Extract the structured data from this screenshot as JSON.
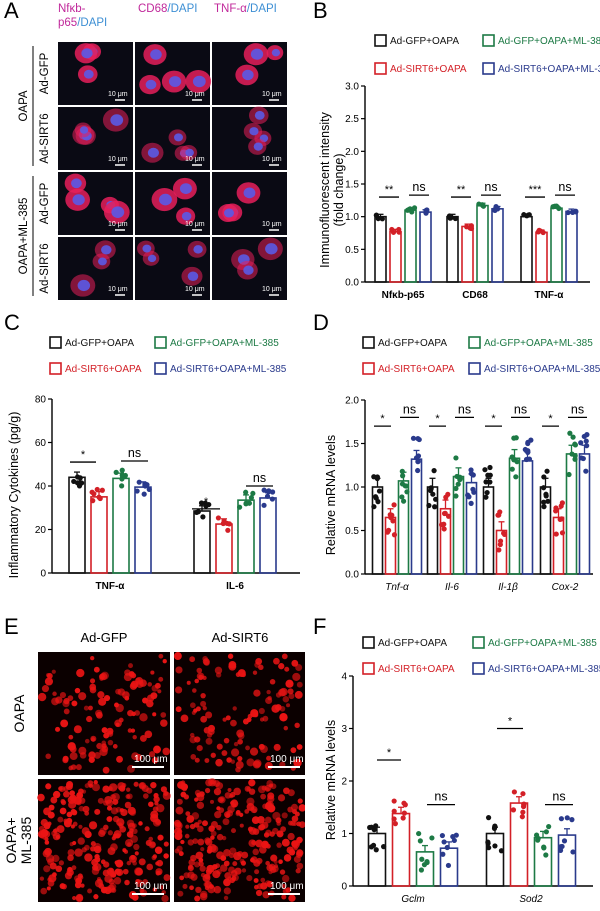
{
  "colors": {
    "black": "#111111",
    "red": "#d32027",
    "green": "#1d7a45",
    "navy": "#2a3a8c",
    "magenta": "#c0289a",
    "cyan": "#3d8fd4",
    "scalebar": "#ffffff"
  },
  "panels": {
    "a": {
      "letter": "A",
      "col_headers": [
        {
          "parts": [
            {
              "t": "Nfκb-p65",
              "c": "magenta"
            },
            {
              "t": "/DAPI",
              "c": "cyan"
            }
          ]
        },
        {
          "parts": [
            {
              "t": "CD68",
              "c": "magenta"
            },
            {
              "t": "/DAPI",
              "c": "cyan"
            }
          ]
        },
        {
          "parts": [
            {
              "t": "TNF-α",
              "c": "magenta"
            },
            {
              "t": "/DAPI",
              "c": "cyan"
            }
          ]
        }
      ],
      "group_labels": [
        "OAPA",
        "OAPA+ML-385"
      ],
      "row_labels": [
        "Ad-GFP",
        "Ad-SIRT6",
        "Ad-GFP",
        "Ad-SIRT6"
      ],
      "scale_text": "10 μm"
    },
    "b": {
      "letter": "B",
      "legend": [
        "Ad-GFP+OAPA",
        "Ad-GFP+OAPA+ML-385",
        "Ad-SIRT6+OAPA",
        "Ad-SIRT6+OAPA+ML-385"
      ],
      "ylabel_line1": "Immunofluorescent intensity",
      "ylabel_line2": "(fold change)",
      "yticks": [
        "0.0",
        "0.5",
        "1.0",
        "1.5",
        "2.0",
        "2.5",
        "3.0"
      ],
      "sig": [
        "**",
        "**",
        "***"
      ],
      "ns": [
        "ns",
        "ns",
        "ns"
      ]
    },
    "c": {
      "letter": "C",
      "legend": [
        "Ad-GFP+OAPA",
        "Ad-GFP+OAPA+ML-385",
        "Ad-SIRT6+OAPA",
        "Ad-SIRT6+OAPA+ML-385"
      ],
      "ylabel": "Inflammatory Cytokines (pg/g)",
      "yticks": [
        "0",
        "20",
        "40",
        "60",
        "80"
      ],
      "sig": [
        "*",
        "*"
      ],
      "ns": [
        "ns",
        "ns"
      ]
    },
    "d": {
      "letter": "D",
      "legend": [
        "Ad-GFP+OAPA",
        "Ad-GFP+OAPA+ML-385",
        "Ad-SIRT6+OAPA",
        "Ad-SIRT6+OAPA+ML-385"
      ],
      "ylabel": "Relative mRNA levels",
      "yticks": [
        "0.0",
        "0.5",
        "1.0",
        "1.5",
        "2.0"
      ],
      "sig": [
        "*",
        "*",
        "*",
        "*"
      ],
      "ns": [
        "ns",
        "ns",
        "ns",
        "ns"
      ]
    },
    "e": {
      "letter": "E",
      "col_headers": [
        "Ad-GFP",
        "Ad-SIRT6"
      ],
      "row_labels": [
        "OAPA",
        "OAPA+\nML-385"
      ],
      "scale_text": "100 μm"
    },
    "f": {
      "letter": "F",
      "legend": [
        "Ad-GFP+OAPA",
        "Ad-GFP+OAPA+ML-385",
        "Ad-SIRT6+OAPA",
        "Ad-SIRT6+OAPA+ML-385"
      ],
      "ylabel": "Relative mRNA levels",
      "yticks": [
        "0",
        "1",
        "2",
        "3",
        "4"
      ],
      "sig": [
        "*",
        "*"
      ],
      "ns": [
        "ns",
        "ns"
      ]
    }
  },
  "chart_data": [
    {
      "panel": "B",
      "type": "bar",
      "categories": [
        "Nfκb-p65",
        "CD68",
        "TNF-α"
      ],
      "ylim": [
        0,
        3
      ],
      "ylabel": "Immunofluorescent intensity (fold change)",
      "series": [
        {
          "name": "Ad-GFP+OAPA",
          "values": [
            1.0,
            1.0,
            1.0
          ]
        },
        {
          "name": "Ad-SIRT6+OAPA",
          "values": [
            0.77,
            0.85,
            0.76
          ]
        },
        {
          "name": "Ad-GFP+OAPA+ML-385",
          "values": [
            1.1,
            1.17,
            1.13
          ]
        },
        {
          "name": "Ad-SIRT6+OAPA+ML-385",
          "values": [
            1.07,
            1.12,
            1.08
          ]
        }
      ]
    },
    {
      "panel": "C",
      "type": "bar",
      "categories": [
        "TNF-α",
        "IL-6"
      ],
      "ylim": [
        0,
        80
      ],
      "ylabel": "Inflammatory Cytokines (pg/g)",
      "series": [
        {
          "name": "Ad-GFP+OAPA",
          "values": [
            44,
            28.5
          ]
        },
        {
          "name": "Ad-SIRT6+OAPA",
          "values": [
            35,
            22.5
          ]
        },
        {
          "name": "Ad-GFP+OAPA+ML-385",
          "values": [
            43.5,
            33.5
          ]
        },
        {
          "name": "Ad-SIRT6+OAPA+ML-385",
          "values": [
            39.5,
            34.5
          ]
        }
      ]
    },
    {
      "panel": "D",
      "type": "bar",
      "categories": [
        "Tnf-α",
        "Il-6",
        "Il-1β",
        "Cox-2"
      ],
      "ylim": [
        0,
        2
      ],
      "ylabel": "Relative mRNA levels",
      "series": [
        {
          "name": "Ad-GFP+OAPA",
          "values": [
            1.0,
            1.0,
            1.0,
            1.0
          ]
        },
        {
          "name": "Ad-SIRT6+OAPA",
          "values": [
            0.65,
            0.75,
            0.5,
            0.65
          ]
        },
        {
          "name": "Ad-GFP+OAPA+ML-385",
          "values": [
            1.07,
            1.12,
            1.33,
            1.38
          ]
        },
        {
          "name": "Ad-SIRT6+OAPA+ML-385",
          "values": [
            1.32,
            1.05,
            1.3,
            1.38
          ]
        }
      ]
    },
    {
      "panel": "F",
      "type": "bar",
      "categories": [
        "Gclm",
        "Sod2"
      ],
      "ylim": [
        0,
        4
      ],
      "ylabel": "Relative mRNA levels",
      "series": [
        {
          "name": "Ad-GFP+OAPA",
          "values": [
            1.0,
            1.0
          ]
        },
        {
          "name": "Ad-SIRT6+OAPA",
          "values": [
            1.38,
            1.58
          ]
        },
        {
          "name": "Ad-GFP+OAPA+ML-385",
          "values": [
            0.65,
            0.92
          ]
        },
        {
          "name": "Ad-SIRT6+OAPA+ML-385",
          "values": [
            0.72,
            0.97
          ]
        }
      ]
    }
  ]
}
